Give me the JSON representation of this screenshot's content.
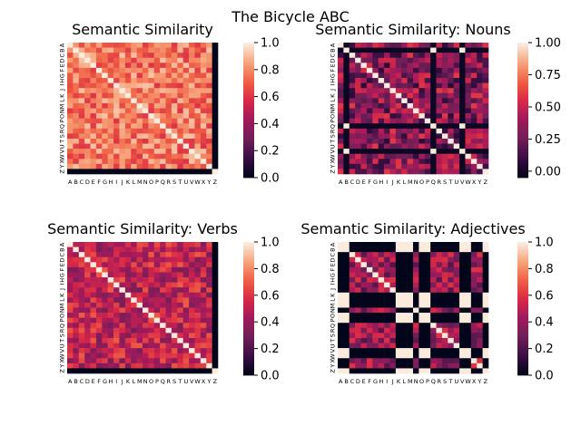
{
  "figure": {
    "title": "The Bicycle ABC"
  },
  "colormap": [
    "#03051a",
    "#3b0f45",
    "#701f57",
    "#a11a5b",
    "#d92847",
    "#f06043",
    "#f6a47c",
    "#faebdd"
  ],
  "chart_data": [
    {
      "type": "heatmap",
      "title": "Semantic Similarity",
      "labels": [
        "A",
        "B",
        "C",
        "D",
        "E",
        "F",
        "G",
        "H",
        "I",
        "J",
        "K",
        "L",
        "M",
        "N",
        "O",
        "P",
        "Q",
        "R",
        "S",
        "T",
        "U",
        "V",
        "W",
        "X",
        "Y",
        "Z"
      ],
      "colorbar": {
        "vmin": 0.0,
        "vmax": 1.0,
        "ticks": [
          "0.0",
          "0.2",
          "0.4",
          "0.6",
          "0.8",
          "1.0"
        ]
      },
      "diagonal": 1.0,
      "zero_rows": [
        25
      ],
      "zero_cols": [
        25
      ],
      "offdiag_range": [
        0.6,
        0.92
      ],
      "grid": false
    },
    {
      "type": "heatmap",
      "title": "Semantic Similarity: Nouns",
      "labels": [
        "A",
        "B",
        "C",
        "D",
        "E",
        "F",
        "G",
        "H",
        "I",
        "J",
        "K",
        "L",
        "M",
        "N",
        "O",
        "P",
        "Q",
        "R",
        "S",
        "T",
        "U",
        "V",
        "W",
        "X",
        "Y",
        "Z"
      ],
      "colorbar": {
        "vmin": -0.05,
        "vmax": 1.0,
        "ticks": [
          "0.00",
          "0.25",
          "0.50",
          "0.75",
          "1.00"
        ]
      },
      "diagonal": 1.0,
      "special_rows": [
        1,
        16,
        21
      ],
      "offdiag_range": [
        0.05,
        0.6
      ],
      "grid": false
    },
    {
      "type": "heatmap",
      "title": "Semantic Similarity: Verbs",
      "labels": [
        "A",
        "B",
        "C",
        "D",
        "E",
        "F",
        "G",
        "H",
        "I",
        "J",
        "K",
        "L",
        "M",
        "N",
        "O",
        "P",
        "Q",
        "R",
        "S",
        "T",
        "U",
        "V",
        "W",
        "X",
        "Y",
        "Z"
      ],
      "colorbar": {
        "vmin": 0.0,
        "vmax": 1.0,
        "ticks": [
          "0.0",
          "0.2",
          "0.4",
          "0.6",
          "0.8",
          "1.0"
        ]
      },
      "diagonal": 1.0,
      "zero_rows": [
        25
      ],
      "zero_cols": [
        25
      ],
      "offdiag_range": [
        0.3,
        0.7
      ],
      "grid": false
    },
    {
      "type": "heatmap",
      "title": "Semantic Similarity: Adjectives",
      "labels": [
        "A",
        "B",
        "C",
        "D",
        "E",
        "F",
        "G",
        "H",
        "I",
        "J",
        "K",
        "L",
        "M",
        "N",
        "O",
        "P",
        "Q",
        "R",
        "S",
        "T",
        "U",
        "V",
        "W",
        "X",
        "Y",
        "Z"
      ],
      "colorbar": {
        "vmin": 0.0,
        "vmax": 1.0,
        "ticks": [
          "0.0",
          "0.2",
          "0.4",
          "0.6",
          "0.8",
          "1.0"
        ]
      },
      "diagonal": 1.0,
      "special_rows": [
        0,
        1,
        10,
        11,
        12,
        14,
        15,
        21,
        22,
        25
      ],
      "offdiag_range": [
        0.2,
        0.6
      ],
      "grid": false
    }
  ]
}
